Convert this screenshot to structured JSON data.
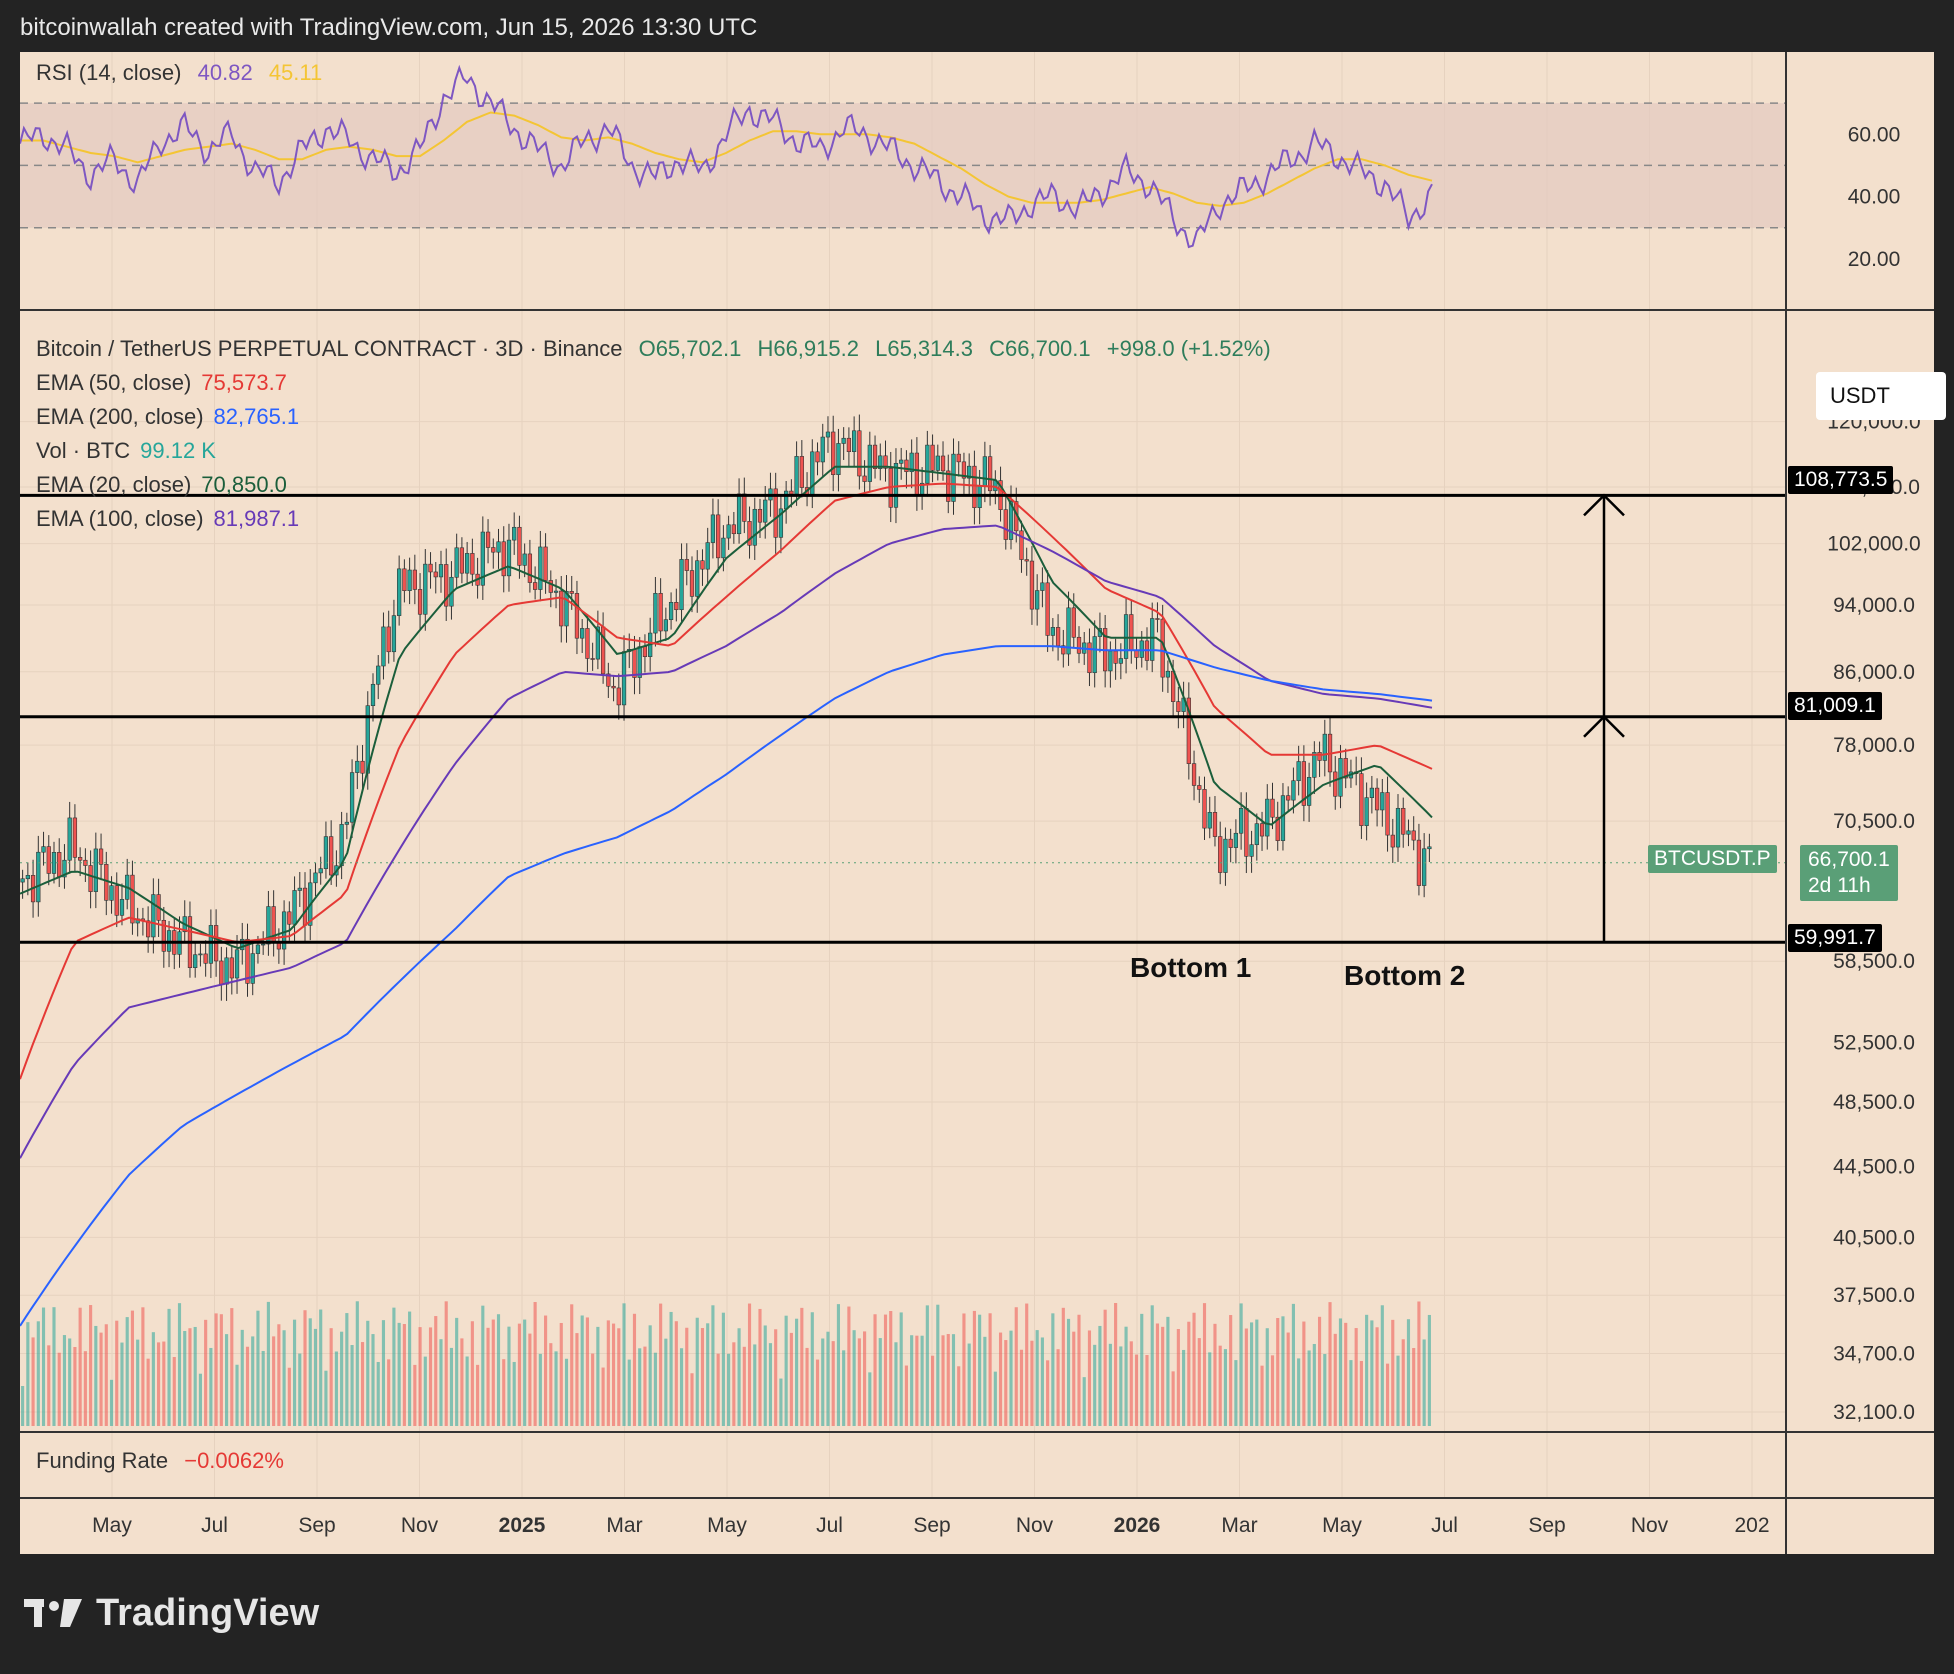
{
  "header": {
    "text": "bitcoinwallah created with TradingView.com, Jun 15, 2026 13:30 UTC"
  },
  "rsi_legend": {
    "name": "RSI (14, close)",
    "value": "40.82",
    "ma_value": "45.11"
  },
  "main_legend": {
    "symbol": "Bitcoin / TetherUS PERPETUAL CONTRACT · 3D · Binance",
    "open": "O65,702.1",
    "high": "H66,915.2",
    "low": "L65,314.3",
    "close": "C66,700.1",
    "change": "+998.0 (+1.52%)",
    "indicators": [
      {
        "name": "EMA (50, close)",
        "value": "75,573.7",
        "color": "#e53935"
      },
      {
        "name": "EMA (200, close)",
        "value": "82,765.1",
        "color": "#2962ff"
      },
      {
        "name": "Vol · BTC",
        "value": "99.12 K",
        "color": "#26a69a"
      },
      {
        "name": "EMA (20, close)",
        "value": "70,850.0",
        "color": "#1b5e3b"
      },
      {
        "name": "EMA (100, close)",
        "value": "81,987.1",
        "color": "#673ab7"
      }
    ]
  },
  "funding": {
    "label": "Funding Rate",
    "value": "−0.0062%"
  },
  "currency_box": "USDT",
  "symbol_tag": {
    "name": "BTCUSDT.P",
    "price": "66,700.1",
    "countdown": "2d 11h"
  },
  "level_tags": [
    "108,773.5",
    "81,009.1",
    "59,991.7"
  ],
  "annotations": {
    "bottom1": "Bottom 1",
    "bottom2": "Bottom 2"
  },
  "brand": "TradingView",
  "colors": {
    "up": "#26a69a",
    "down": "#ef5350",
    "rsi": "#7e57c2",
    "rsi_ma": "#f4c534",
    "background": "#f3e0cd",
    "price_tag": "#5a9f77"
  },
  "chart_data": [
    {
      "type": "line",
      "title": "RSI (14, close)",
      "y_ticks": [
        "60.00",
        "40.00",
        "20.00"
      ],
      "bands": [
        30,
        50,
        70
      ],
      "series": [
        {
          "name": "RSI (14, close)",
          "values": [
            57,
            60,
            55,
            47,
            52,
            44,
            58,
            62,
            55,
            60,
            48,
            45,
            55,
            62,
            58,
            52,
            48,
            55,
            72,
            78,
            70,
            62,
            55,
            50,
            58,
            62,
            50,
            46,
            52,
            48,
            60,
            68,
            64,
            58,
            55,
            62,
            60,
            55,
            50,
            45,
            40,
            34,
            32,
            38,
            40,
            36,
            42,
            48,
            44,
            33,
            25,
            38,
            42,
            47,
            52,
            57,
            53,
            48,
            44,
            33,
            40.82
          ]
        },
        {
          "name": "RSI-based MA",
          "values": [
            58,
            58,
            56,
            54,
            53,
            51,
            53,
            55,
            56,
            57,
            55,
            52,
            52,
            55,
            56,
            55,
            53,
            53,
            58,
            64,
            67,
            66,
            63,
            59,
            58,
            59,
            57,
            54,
            52,
            51,
            54,
            58,
            61,
            61,
            60,
            60,
            60,
            59,
            57,
            53,
            49,
            44,
            40,
            38,
            38,
            38,
            39,
            41,
            43,
            41,
            38,
            37,
            38,
            41,
            45,
            49,
            52,
            52,
            50,
            47,
            45.11
          ]
        }
      ]
    },
    {
      "type": "candlestick",
      "title": "Bitcoin / TetherUS PERPETUAL CONTRACT · 3D · Binance",
      "x_ticks": [
        "May",
        "Jul",
        "Sep",
        "Nov",
        "2025",
        "Mar",
        "May",
        "Jul",
        "Sep",
        "Nov",
        "2026",
        "Mar",
        "May",
        "Jul",
        "Sep",
        "Nov",
        "202"
      ],
      "y_ticks": [
        "120,000.0",
        "110,000.0",
        "102,000.0",
        "94,000.0",
        "86,000.0",
        "78,000.0",
        "70,500.0",
        "58,500.0",
        "52,500.0",
        "48,500.0",
        "44,500.0",
        "40,500.0",
        "37,500.0",
        "34,700.0",
        "32,100.0"
      ],
      "x": [
        "2024-04",
        "2024-05",
        "2024-06",
        "2024-07",
        "2024-08",
        "2024-09",
        "2024-10",
        "2024-11",
        "2024-12",
        "2025-01",
        "2025-02",
        "2025-03",
        "2025-04",
        "2025-05",
        "2025-06",
        "2025-07",
        "2025-08",
        "2025-09",
        "2025-10",
        "2025-11",
        "2025-12",
        "2026-01",
        "2026-02",
        "2026-03",
        "2026-04",
        "2026-05",
        "2026-06"
      ],
      "close": [
        65000,
        68000,
        63000,
        60000,
        58000,
        62000,
        69000,
        96000,
        98000,
        102000,
        95000,
        84000,
        94000,
        104000,
        107000,
        117000,
        112000,
        113000,
        110000,
        91000,
        88000,
        90000,
        68000,
        70000,
        77000,
        72000,
        66700
      ],
      "horizontal_levels": [
        108773.5,
        81009.1,
        59991.7
      ],
      "series": [
        {
          "name": "EMA (20, close)",
          "values": [
            64000,
            66000,
            64500,
            61500,
            59500,
            61000,
            67000,
            88000,
            96000,
            99000,
            96000,
            88000,
            90000,
            100000,
            106000,
            113000,
            113000,
            112000,
            111000,
            97000,
            90000,
            90000,
            74000,
            70000,
            74000,
            76000,
            70850
          ]
        },
        {
          "name": "EMA (50, close)",
          "values": [
            50000,
            60000,
            62000,
            61000,
            60000,
            60500,
            64000,
            78000,
            88000,
            94000,
            95000,
            90000,
            89000,
            95000,
            101000,
            108000,
            110000,
            110500,
            110000,
            103000,
            96000,
            93000,
            82000,
            77000,
            77000,
            78000,
            75573.7
          ]
        },
        {
          "name": "EMA (100, close)",
          "values": [
            45000,
            51000,
            55000,
            56000,
            57000,
            58000,
            60000,
            68000,
            76000,
            83000,
            86000,
            85500,
            86000,
            89000,
            93000,
            98000,
            102000,
            104000,
            104500,
            101000,
            97000,
            95000,
            89000,
            85000,
            83500,
            83000,
            81987.1
          ]
        },
        {
          "name": "EMA (200, close)",
          "values": [
            36000,
            40000,
            44000,
            47000,
            49000,
            51000,
            53000,
            57000,
            61000,
            65500,
            67500,
            69000,
            71500,
            75000,
            79000,
            83000,
            86000,
            88000,
            89000,
            89000,
            88500,
            88500,
            86500,
            85000,
            84000,
            83500,
            82765.1
          ]
        }
      ]
    },
    {
      "type": "bar",
      "title": "Vol · BTC",
      "values": [
        99.12
      ]
    }
  ]
}
